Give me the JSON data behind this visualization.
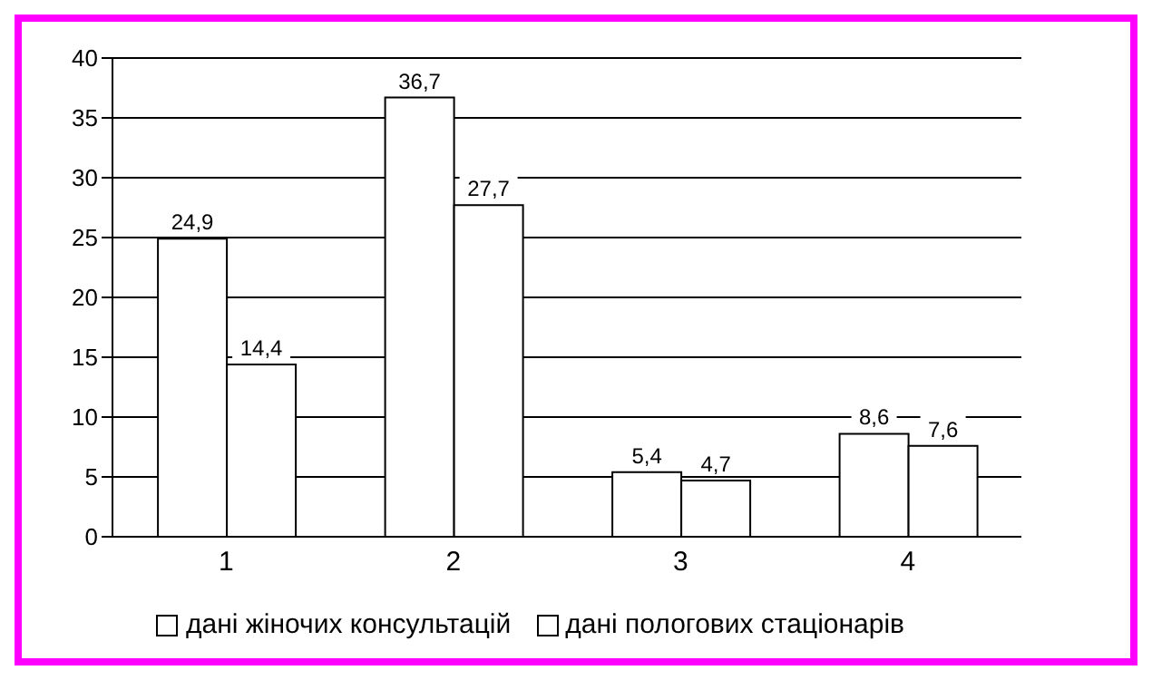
{
  "chart_data": {
    "type": "bar",
    "categories": [
      "1",
      "2",
      "3",
      "4"
    ],
    "series": [
      {
        "name": "дані жіночих консультацій",
        "color": "#ffffff",
        "values": [
          24.9,
          36.7,
          5.4,
          8.6
        ],
        "value_labels": [
          "24,9",
          "36,7",
          "5,4",
          "8,6"
        ]
      },
      {
        "name": "дані пологових стаціонарів",
        "color": "#ffffff",
        "values": [
          14.4,
          27.7,
          4.7,
          7.6
        ],
        "value_labels": [
          "14,4",
          "27,7",
          "4,7",
          "7,6"
        ]
      }
    ],
    "ylim": [
      0,
      40
    ],
    "yticks": [
      0,
      5,
      10,
      15,
      20,
      25,
      30,
      35,
      40
    ],
    "grid": "y",
    "legend": "bottom"
  }
}
